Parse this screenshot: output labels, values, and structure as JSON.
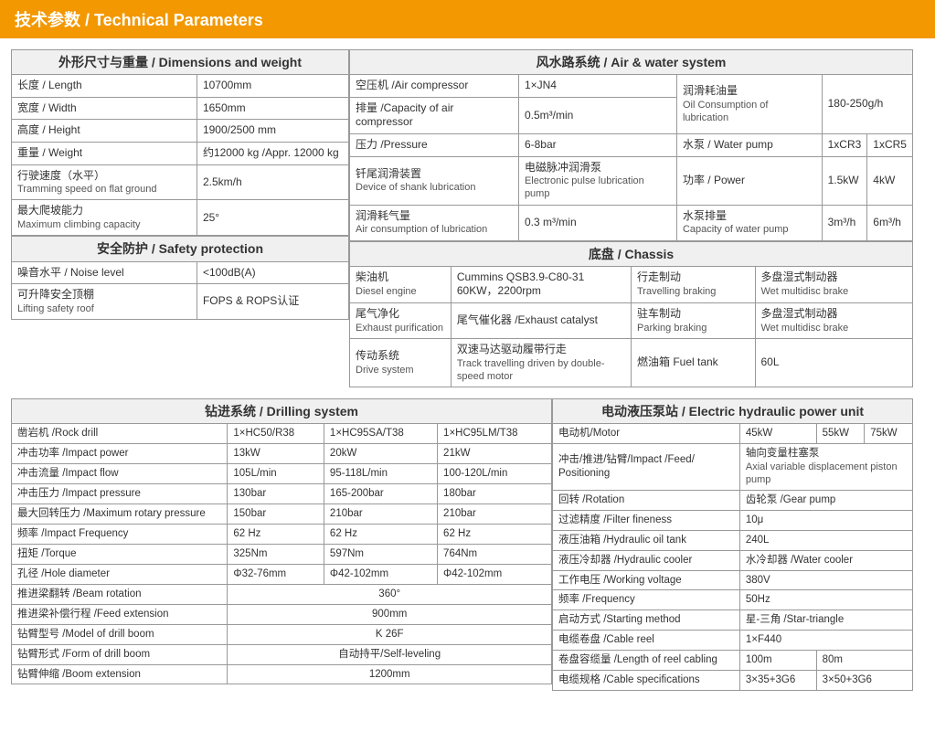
{
  "header": "技术参数 / Technical Parameters",
  "dim": {
    "title": "外形尺寸与重量 / Dimensions and weight",
    "rows": [
      {
        "l": "长度 / Length",
        "v": "10700mm"
      },
      {
        "l": "宽度 / Width",
        "v": "1650mm"
      },
      {
        "l": "高度 / Height",
        "v": "1900/2500 mm"
      },
      {
        "l": "重量 / Weight",
        "v": "约12000 kg /Appr. 12000 kg"
      },
      {
        "l": "行驶速度（水平）",
        "l2": "Tramming speed on flat ground",
        "v": "2.5km/h"
      },
      {
        "l": "最大爬坡能力",
        "l2": "Maximum climbing capacity",
        "v": "25°"
      }
    ]
  },
  "safety": {
    "title": "安全防护 / Safety protection",
    "rows": [
      {
        "l": "噪音水平 / Noise level",
        "v": "<100dB(A)"
      },
      {
        "l": "可升降安全顶棚",
        "l2": "Lifting safety roof",
        "v": "FOPS & ROPS认证"
      }
    ]
  },
  "air": {
    "title": "风水路系统 / Air & water system",
    "rows": [
      {
        "l": "空压机 /Air compressor",
        "v": "1×JN4",
        "r": "润滑耗油量",
        "r2": "Oil Consumption of lubrication",
        "rv": "180-250g/h",
        "rspan": 2
      },
      {
        "l": "排量 /Capacity of air compressor",
        "v": "0.5m³/min"
      },
      {
        "l": "压力 /Pressure",
        "v": "6-8bar",
        "r": "水泵 / Water pump",
        "rv1": "1xCR3",
        "rv2": "1xCR5"
      },
      {
        "l": "钎尾润滑装置",
        "l2": "Device of shank lubrication",
        "v": "电磁脉冲润滑泵",
        "v2": "Electronic pulse lubrication pump",
        "r": "功率 / Power",
        "rv1": "1.5kW",
        "rv2": "4kW"
      },
      {
        "l": "润滑耗气量",
        "l2": "Air consumption of lubrication",
        "v": "0.3 m³/min",
        "r": "水泵排量",
        "r2": "Capacity of water pump",
        "rv1": "3m³/h",
        "rv2": "6m³/h"
      }
    ]
  },
  "chassis": {
    "title": "底盘 / Chassis",
    "rows": [
      {
        "l": "柴油机",
        "l2": "Diesel engine",
        "v": "Cummins QSB3.9-C80-31 60KW，2200rpm",
        "r": "行走制动",
        "r2": "Travelling braking",
        "rv": "多盘湿式制动器",
        "rv2": "Wet multidisc brake"
      },
      {
        "l": "尾气净化",
        "l2": "Exhaust purification",
        "v": "尾气催化器 /Exhaust catalyst",
        "r": "驻车制动",
        "r2": "Parking braking",
        "rv": "多盘湿式制动器",
        "rv2": "Wet multidisc brake"
      },
      {
        "l": "传动系统",
        "l2": "Drive system",
        "v": "双速马达驱动履带行走",
        "v2": "Track travelling driven by double-speed motor",
        "r": "燃油箱 Fuel tank",
        "rv": "60L"
      }
    ]
  },
  "drill": {
    "title": "钻进系统 / Drilling system",
    "rows": [
      {
        "l": "凿岩机 /Rock drill",
        "a": "1×HC50/R38",
        "b": "1×HC95SA/T38",
        "c": "1×HC95LM/T38"
      },
      {
        "l": "冲击功率 /Impact power",
        "a": "13kW",
        "b": "20kW",
        "c": "21kW"
      },
      {
        "l": "冲击流量 /Impact flow",
        "a": "105L/min",
        "b": "95-118L/min",
        "c": "100-120L/min"
      },
      {
        "l": "冲击压力 /Impact pressure",
        "a": "130bar",
        "b": "165-200bar",
        "c": "180bar"
      },
      {
        "l": "最大回转压力 /Maximum rotary pressure",
        "a": "150bar",
        "b": "210bar",
        "c": "210bar"
      },
      {
        "l": "频率 /Impact Frequency",
        "a": "62 Hz",
        "b": "62 Hz",
        "c": "62 Hz"
      },
      {
        "l": "扭矩 /Torque",
        "a": "325Nm",
        "b": "597Nm",
        "c": "764Nm"
      },
      {
        "l": "孔径 /Hole diameter",
        "a": "Φ32-76mm",
        "b": "Φ42-102mm",
        "c": "Φ42-102mm"
      },
      {
        "l": "推进梁翻转 /Beam rotation",
        "span": "360°"
      },
      {
        "l": "推进梁补偿行程 /Feed extension",
        "span": "900mm"
      },
      {
        "l": "钻臂型号 /Model of drill boom",
        "span": "K 26F"
      },
      {
        "l": "钻臂形式 /Form of drill boom",
        "span": "自动持平/Self-leveling"
      },
      {
        "l": "钻臂伸缩 /Boom extension",
        "span": "1200mm"
      }
    ]
  },
  "hyd": {
    "title": "电动液压泵站 / Electric hydraulic power unit",
    "rows": [
      {
        "l": "电动机/Motor",
        "a": "45kW",
        "b": "55kW",
        "c": "75kW"
      },
      {
        "l": "冲击/推进/钻臂/Impact /Feed/ Positioning",
        "span": "轴向变量柱塞泵",
        "span2": "Axial variable displacement piston pump"
      },
      {
        "l": "回转 /Rotation",
        "span": "齿轮泵 /Gear pump"
      },
      {
        "l": "过滤精度 /Filter fineness",
        "span": "10μ"
      },
      {
        "l": "液压油箱 /Hydraulic oil tank",
        "span": "240L"
      },
      {
        "l": "液压冷却器 /Hydraulic cooler",
        "span": "水冷却器 /Water cooler"
      },
      {
        "l": "工作电压 /Working voltage",
        "span": "380V"
      },
      {
        "l": "频率 /Frequency",
        "span": "50Hz"
      },
      {
        "l": "启动方式 /Starting method",
        "span": "星-三角 /Star-triangle"
      },
      {
        "l": "电缆卷盘 /Cable reel",
        "span": "1×F440"
      },
      {
        "l": "卷盘容缆量 /Length of reel cabling",
        "a2": "100m",
        "b2": "80m"
      },
      {
        "l": "电缆规格 /Cable specifications",
        "a2": "3×35+3G6",
        "b2": "3×50+3G6"
      }
    ]
  },
  "colors": {
    "header_bg": "#f39800",
    "border": "#999999",
    "th_bg": "#f0f0f0"
  }
}
